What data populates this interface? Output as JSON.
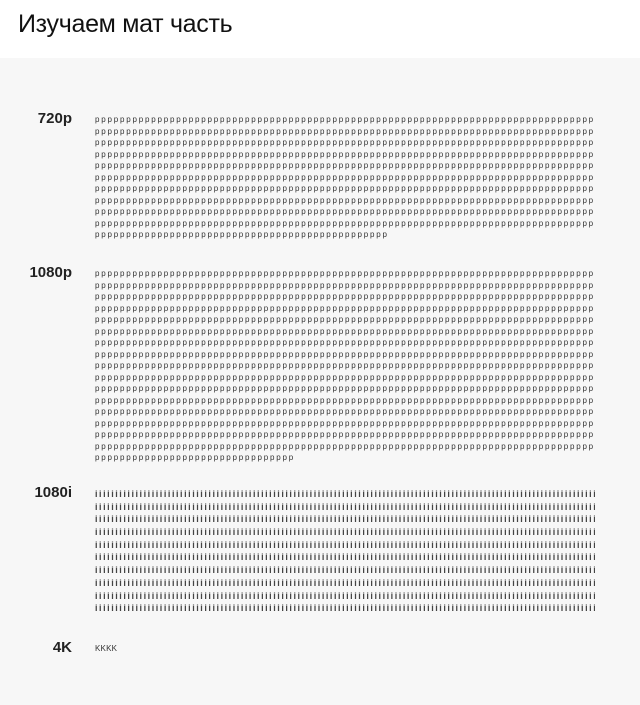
{
  "title": "Изучаем мат часть",
  "sections": [
    {
      "label": "720p",
      "char": "p",
      "rows": 11,
      "chars_per_row": 80,
      "last_row_chars": 47
    },
    {
      "label": "1080p",
      "char": "p",
      "rows": 17,
      "chars_per_row": 80,
      "last_row_chars": 32
    },
    {
      "label": "1080i",
      "char": "i",
      "rows": 10,
      "chars_per_row": 140,
      "last_row_chars": 127
    },
    {
      "label": "4K",
      "char": "K",
      "rows": 1,
      "chars_per_row": 4,
      "last_row_chars": 4
    }
  ]
}
